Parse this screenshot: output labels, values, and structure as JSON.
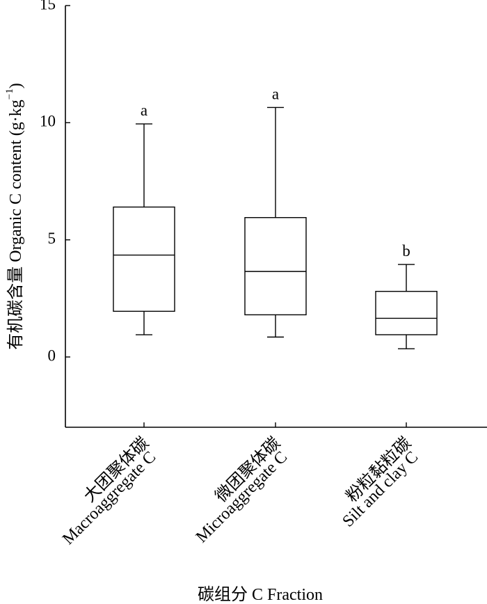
{
  "chart_data": {
    "type": "box",
    "xlabel": "碳组分 C Fraction",
    "ylabel_main": "有机碳含量 Organic C content (g·kg",
    "ylabel_exp": "−1",
    "ylabel_close": ")",
    "ylim": [
      -3,
      15
    ],
    "yticks": [
      0,
      5,
      10,
      15
    ],
    "ytick_labels": [
      "0",
      "5",
      "10",
      "15"
    ],
    "categories": [
      {
        "zh": "大团聚体碳",
        "en": "Macroaggregate C"
      },
      {
        "zh": "微团聚体碳",
        "en": "Microaggregate C"
      },
      {
        "zh": "粉粒黏粒碳",
        "en": "Silt and clay C"
      }
    ],
    "boxes": [
      {
        "min": 0.95,
        "q1": 1.95,
        "median": 4.35,
        "q3": 6.4,
        "max": 9.95,
        "sig": "a"
      },
      {
        "min": 0.85,
        "q1": 1.8,
        "median": 3.65,
        "q3": 5.95,
        "max": 10.65,
        "sig": "a"
      },
      {
        "min": 0.35,
        "q1": 0.95,
        "median": 1.65,
        "q3": 2.8,
        "max": 3.95,
        "sig": "b"
      }
    ]
  }
}
